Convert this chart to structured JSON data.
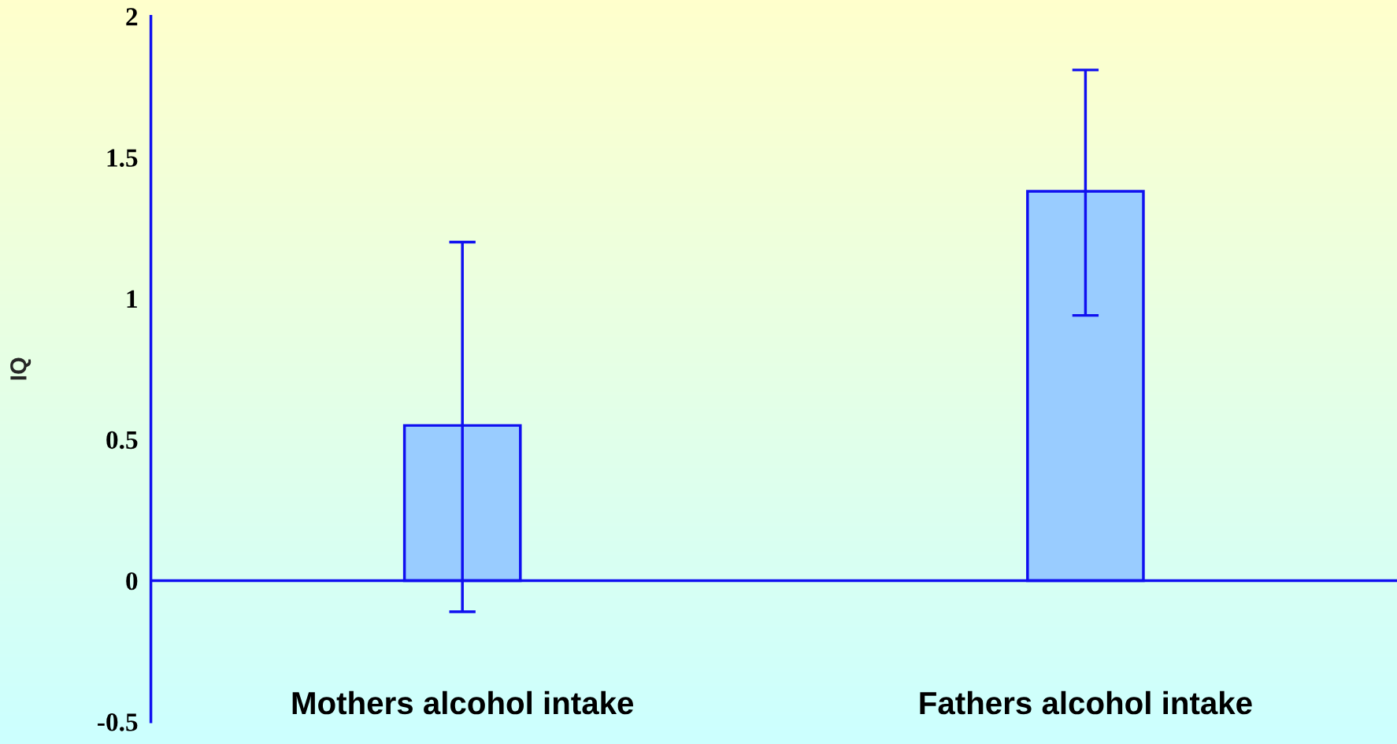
{
  "chart_data": {
    "type": "bar",
    "ylabel": "IQ",
    "categories": [
      "Mothers alcohol intake",
      "Fathers alcohol intake"
    ],
    "values": [
      0.55,
      1.38
    ],
    "errors": [
      [
        -0.11,
        1.2
      ],
      [
        0.94,
        1.81
      ]
    ],
    "color": "#99ccff",
    "ref_lines": [
      {
        "axis": "y",
        "value": 0,
        "color": "#1010f0"
      }
    ],
    "ylim": [
      -0.5,
      2
    ],
    "yticks": [
      -0.5,
      0,
      0.5,
      1,
      1.5,
      2
    ],
    "grid": false,
    "legend": false
  }
}
